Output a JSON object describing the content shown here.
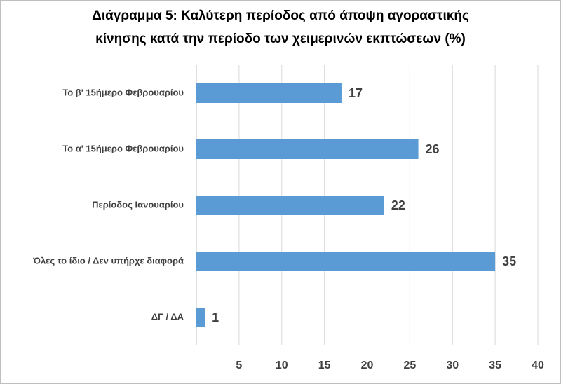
{
  "chart_data": {
    "type": "hbar",
    "title": [
      "Διάγραμμα 5: Καλύτερη περίοδος από άποψη αγοραστικής",
      "κίνησης κατά την περίοδο των χειμερινών εκπτώσεων (%)"
    ],
    "categories": [
      "Το β' 15ήμερο Φεβρουαρίου",
      "Το α' 15ήμερο Φεβρουαρίου",
      "Περίοδος Ιανουαρίου",
      "Όλες το ίδιο / Δεν υπήρχε διαφορά",
      "ΔΓ / ΔΑ"
    ],
    "values": [
      17,
      26,
      22,
      35,
      1
    ],
    "color": "#5b9bd5",
    "xlim": [
      0,
      40
    ],
    "xticks": [
      5,
      10,
      15,
      20,
      25,
      30,
      35,
      40
    ],
    "grid": true
  }
}
